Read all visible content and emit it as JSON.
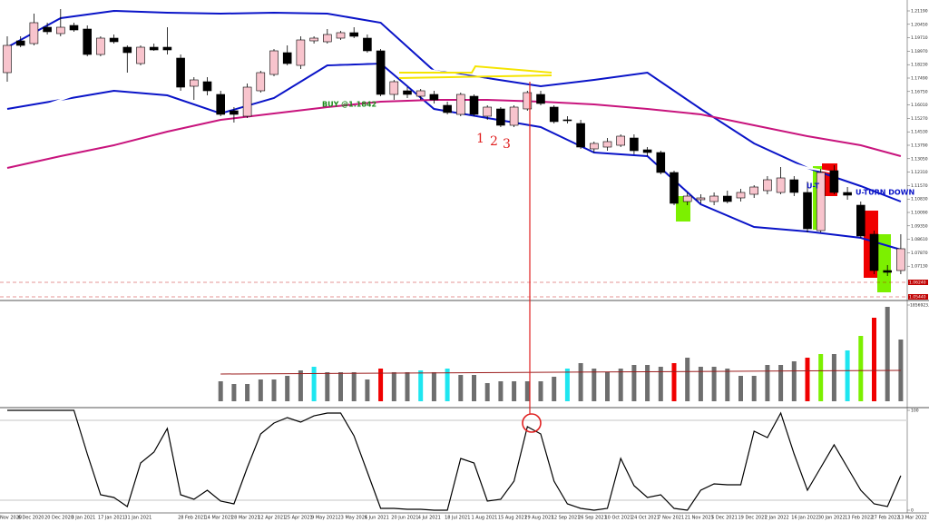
{
  "chart_data": [
    {
      "type": "candlestick",
      "categories": [
        "Nov 2020",
        "6 Dec 2020",
        null,
        "20 Dec 2020",
        null,
        "3 Jan 2021",
        null,
        "17 Jan 2021",
        null,
        "31 Jan 2021",
        null,
        null,
        null,
        "28 Feb 2021",
        null,
        "14 Mar 2021",
        null,
        "28 Mar 2021",
        null,
        "12 Apr 2021",
        null,
        "25 Apr 2021",
        null,
        "9 May 2021",
        null,
        "23 May 2021",
        null,
        "6 Jun 2021",
        null,
        "20 Jun 2021",
        null,
        "4 Jul 2021",
        null,
        "18 Jul 2021",
        null,
        "1 Aug 2021",
        null,
        "15 Aug 2021",
        null,
        "29 Aug 2021",
        null,
        "12 Sep 2021",
        null,
        "26 Sep 2021",
        null,
        "10 Oct 2021",
        null,
        "24 Oct 2021",
        null,
        "7 Nov 2021",
        null,
        "21 Nov 2021",
        null,
        "5 Dec 2021",
        null,
        "19 Dec 2021",
        null,
        "2 Jan 2022",
        null,
        "16 Jan 2022",
        null,
        "30 Jan 2022",
        null,
        "13 Feb 2022",
        null,
        "27 Feb 2022",
        null,
        "13 Mar 2022"
      ],
      "open": [
        1.1779,
        1.1954,
        1.1939,
        1.2029,
        1.1994,
        1.2039,
        1.2019,
        1.1879,
        1.1969,
        1.1919,
        1.1829,
        1.1919,
        1.1919,
        1.1859,
        1.1704,
        1.1729,
        1.1659,
        1.1569,
        1.1539,
        1.1679,
        1.1769,
        1.1889,
        1.1819,
        1.1954,
        1.1949,
        1.1969,
        1.1999,
        1.1969,
        1.1899,
        1.1659,
        1.1679,
        1.1649,
        1.1659,
        1.1599,
        1.1549,
        1.1649,
        1.1539,
        1.1579,
        1.1489,
        1.1579,
        1.1659,
        1.1589,
        1.1519,
        1.1499,
        1.1359,
        1.1369,
        1.1379,
        1.1419,
        1.1354,
        1.1339,
        1.1229,
        1.1069,
        1.1079,
        1.1069,
        1.1099,
        1.1089,
        1.1109,
        1.1129,
        1.1119,
        1.1189,
        1.1119,
        1.0909,
        1.1239,
        1.1119,
        1.1049,
        1.0889,
        1.0689,
        1.0689
      ],
      "high": [
        1.1979,
        1.1979,
        1.2104,
        1.2054,
        1.2129,
        1.2054,
        1.2039,
        1.1979,
        1.1989,
        1.1929,
        1.1929,
        1.1939,
        1.2029,
        1.1879,
        1.1754,
        1.1754,
        1.1679,
        1.1589,
        1.1719,
        1.1789,
        1.1909,
        1.1929,
        1.1979,
        1.1979,
        1.2019,
        1.2009,
        1.2029,
        1.1989,
        1.1909,
        1.1739,
        1.1699,
        1.1689,
        1.1679,
        1.1619,
        1.1669,
        1.1659,
        1.1599,
        1.1589,
        1.1599,
        1.1679,
        1.1679,
        1.1599,
        1.1539,
        1.1519,
        1.1399,
        1.1419,
        1.1439,
        1.1439,
        1.1369,
        1.1349,
        1.1239,
        1.1119,
        1.1109,
        1.1119,
        1.1129,
        1.1139,
        1.1159,
        1.1209,
        1.1259,
        1.1209,
        1.1179,
        1.1249,
        1.1269,
        1.1149,
        1.1069,
        1.0909,
        1.0719,
        1.0889
      ],
      "low": [
        1.1729,
        1.1919,
        1.1929,
        1.1989,
        1.1979,
        1.2004,
        1.1869,
        1.1869,
        1.1939,
        1.1779,
        1.1819,
        1.1899,
        1.1879,
        1.1679,
        1.1629,
        1.1654,
        1.1539,
        1.1504,
        1.1529,
        1.1669,
        1.1759,
        1.1819,
        1.1799,
        1.1939,
        1.1939,
        1.1959,
        1.1969,
        1.1889,
        1.1649,
        1.1629,
        1.1639,
        1.1629,
        1.1609,
        1.1549,
        1.1539,
        1.1539,
        1.1519,
        1.1479,
        1.1479,
        1.1569,
        1.1599,
        1.1499,
        1.1499,
        1.1359,
        1.1339,
        1.1349,
        1.1369,
        1.1329,
        1.1319,
        1.1219,
        1.1049,
        1.1049,
        1.1059,
        1.1049,
        1.1059,
        1.1069,
        1.1089,
        1.1109,
        1.1109,
        1.1099,
        1.0899,
        1.0899,
        1.1109,
        1.1079,
        1.0869,
        1.0669,
        1.0659,
        1.0669
      ],
      "close": [
        1.1929,
        1.1929,
        1.2054,
        1.2004,
        1.2029,
        1.2014,
        1.1879,
        1.1969,
        1.1949,
        1.1889,
        1.1919,
        1.1904,
        1.1904,
        1.1699,
        1.1739,
        1.1679,
        1.1549,
        1.1549,
        1.1699,
        1.1779,
        1.1899,
        1.1829,
        1.1959,
        1.1969,
        1.1989,
        1.1999,
        1.1979,
        1.1899,
        1.1659,
        1.1729,
        1.1659,
        1.1679,
        1.1629,
        1.1559,
        1.1659,
        1.1549,
        1.1589,
        1.1489,
        1.1589,
        1.1669,
        1.1609,
        1.1509,
        1.1514,
        1.1369,
        1.1389,
        1.1399,
        1.1429,
        1.1349,
        1.1339,
        1.1229,
        1.1059,
        1.1099,
        1.1089,
        1.1099,
        1.1069,
        1.1119,
        1.1149,
        1.1189,
        1.1199,
        1.1119,
        1.0919,
        1.1229,
        1.1119,
        1.1104,
        1.0879,
        1.0689,
        1.0679,
        1.0809
      ],
      "up_color": "#f8c4cd",
      "down_color": "#000000",
      "ylim": [
        1.0529,
        1.2179
      ],
      "yticks": [
        {
          "value": 1.2119,
          "label": "1.21190"
        },
        {
          "value": 1.2045,
          "label": "1.20450"
        },
        {
          "value": 1.1971,
          "label": "1.19710"
        },
        {
          "value": 1.1897,
          "label": "1.18970"
        },
        {
          "value": 1.1823,
          "label": "1.18230"
        },
        {
          "value": 1.1749,
          "label": "1.17490"
        },
        {
          "value": 1.1675,
          "label": "1.16750"
        },
        {
          "value": 1.1601,
          "label": "1.16010"
        },
        {
          "value": 1.1527,
          "label": "1.15270"
        },
        {
          "value": 1.1453,
          "label": "1.14530"
        },
        {
          "value": 1.1379,
          "label": "1.13790"
        },
        {
          "value": 1.1305,
          "label": "1.13050"
        },
        {
          "value": 1.1231,
          "label": "1.12310"
        },
        {
          "value": 1.1157,
          "label": "1.11570"
        },
        {
          "value": 1.1083,
          "label": "1.10830"
        },
        {
          "value": 1.1009,
          "label": "1.10090"
        },
        {
          "value": 1.0935,
          "label": "1.09350"
        },
        {
          "value": 1.0861,
          "label": "1.08610"
        },
        {
          "value": 1.0787,
          "label": "1.07870"
        },
        {
          "value": 1.0713,
          "label": "1.07130"
        }
      ],
      "overlays": [
        {
          "color": "#0a14c8",
          "x": [
            0,
            4,
            8,
            12,
            16,
            20,
            24,
            28,
            32,
            36,
            40,
            44,
            48,
            52,
            56,
            60,
            64,
            67
          ],
          "values": [
            1.1919,
            1.2079,
            1.2119,
            1.2109,
            1.2104,
            1.2109,
            1.2104,
            1.2054,
            1.1789,
            1.1749,
            1.1704,
            1.1739,
            1.1779,
            1.1579,
            1.1389,
            1.1254,
            1.1154,
            1.1069
          ]
        },
        {
          "color": "#0a14c8",
          "x": [
            0,
            4,
            8,
            12,
            16,
            20,
            24,
            28,
            32,
            36,
            40,
            44,
            48,
            52,
            56,
            60,
            64,
            67
          ],
          "values": [
            1.1579,
            1.1629,
            1.1679,
            1.1654,
            1.1554,
            1.1639,
            1.1819,
            1.1829,
            1.1579,
            1.1529,
            1.1479,
            1.1339,
            1.1319,
            1.1054,
            1.0929,
            1.0904,
            1.0869,
            1.0804
          ]
        },
        {
          "color": "#ffffff",
          "x": [
            0,
            4,
            8,
            12,
            16,
            20,
            24,
            28,
            32,
            36,
            40,
            44,
            48,
            52,
            56,
            60,
            64,
            67
          ],
          "values": [
            1.1529,
            1.1629,
            1.1729,
            1.1779,
            1.1789,
            1.1799,
            1.1829,
            1.1839,
            1.1789,
            1.1739,
            1.1679,
            1.1604,
            1.1519,
            1.1429,
            1.1339,
            1.1254,
            1.1204,
            1.1179
          ]
        },
        {
          "color": "#c8147d",
          "x": [
            0,
            4,
            8,
            12,
            16,
            20,
            24,
            28,
            32,
            36,
            40,
            44,
            48,
            52,
            56,
            60,
            64,
            67
          ],
          "values": [
            1.1254,
            1.1319,
            1.1379,
            1.1454,
            1.1519,
            1.1554,
            1.1589,
            1.1619,
            1.1629,
            1.1629,
            1.1619,
            1.1604,
            1.1579,
            1.1549,
            1.1489,
            1.1429,
            1.1379,
            1.1319
          ]
        }
      ],
      "price_lines": [
        {
          "value": 1.0624,
          "label": "1.06240",
          "color": "#c00000"
        },
        {
          "value": 1.0544,
          "label": "1.05440",
          "color": "#c00000"
        }
      ],
      "annotations": [
        "BUY @1.1842",
        "1",
        "2",
        "3",
        "U-T",
        "U-TURN DOWN"
      ]
    },
    {
      "type": "bar",
      "values": [
        null,
        null,
        null,
        null,
        null,
        null,
        null,
        null,
        null,
        null,
        null,
        null,
        null,
        null,
        null,
        null,
        385400,
        332800,
        332800,
        420400,
        420400,
        490500,
        595600,
        665700,
        560600,
        560600,
        560600,
        420400,
        630600,
        560600,
        560600,
        595600,
        560600,
        630600,
        508000,
        508000,
        350400,
        385400,
        385400,
        385400,
        385400,
        473000,
        630600,
        735800,
        630600,
        560600,
        630600,
        700700,
        700700,
        665700,
        735800,
        840900,
        665700,
        665700,
        630600,
        490500,
        490500,
        700700,
        700700,
        770800,
        840900,
        910900,
        910900,
        981000,
        1261300,
        1611700,
        1821900,
        1191200
      ],
      "colors": [
        null,
        null,
        null,
        null,
        null,
        null,
        null,
        null,
        null,
        null,
        null,
        null,
        null,
        null,
        null,
        null,
        "#6e6e6e",
        "#6e6e6e",
        "#6e6e6e",
        "#6e6e6e",
        "#6e6e6e",
        "#6e6e6e",
        "#6e6e6e",
        "#1ee6f0",
        "#6e6e6e",
        "#6e6e6e",
        "#6e6e6e",
        "#6e6e6e",
        "#f00000",
        "#6e6e6e",
        "#6e6e6e",
        "#1ee6f0",
        "#6e6e6e",
        "#1ee6f0",
        "#6e6e6e",
        "#6e6e6e",
        "#6e6e6e",
        "#6e6e6e",
        "#6e6e6e",
        "#6e6e6e",
        "#6e6e6e",
        "#6e6e6e",
        "#1ee6f0",
        "#6e6e6e",
        "#6e6e6e",
        "#6e6e6e",
        "#6e6e6e",
        "#6e6e6e",
        "#6e6e6e",
        "#6e6e6e",
        "#f00000",
        "#6e6e6e",
        "#6e6e6e",
        "#6e6e6e",
        "#6e6e6e",
        "#6e6e6e",
        "#6e6e6e",
        "#6e6e6e",
        "#6e6e6e",
        "#6e6e6e",
        "#f00000",
        "#7cf000",
        "#6e6e6e",
        "#1ee6f0",
        "#7cf000",
        "#f00000",
        "#6e6e6e",
        "#6e6e6e"
      ],
      "ylim": [
        0,
        1856923.4
      ],
      "yticks": [
        1856923.4
      ],
      "ma": {
        "color": "#9b1c1c",
        "x": [
          16,
          67
        ],
        "values": [
          525500,
          595600
        ]
      }
    },
    {
      "type": "line",
      "values": [
        100,
        100,
        100,
        100,
        100,
        100,
        56.4,
        15.5,
        12.7,
        3.6,
        47.3,
        58.2,
        81.8,
        15.5,
        10.9,
        20,
        9.1,
        6.4,
        42.7,
        76.4,
        87.3,
        92.7,
        88.2,
        94.5,
        97.3,
        97.3,
        74.5,
        38.2,
        1.8,
        1.8,
        0.9,
        0.9,
        0,
        0,
        51.8,
        47.3,
        9.1,
        10.9,
        29.1,
        83.6,
        76.4,
        29.1,
        6.4,
        1.8,
        0,
        1.8,
        51.8,
        24.5,
        12.7,
        15.5,
        1.8,
        0,
        20,
        26.4,
        25.5,
        25.5,
        79.1,
        72.7,
        97.3,
        56.4,
        20,
        42.7,
        65.5,
        42.7,
        20,
        6.4,
        3.6,
        34.5
      ],
      "color": "#000000",
      "ylim": [
        0,
        100
      ],
      "yticks": [
        0,
        100
      ],
      "levels": [
        90,
        10
      ]
    }
  ]
}
